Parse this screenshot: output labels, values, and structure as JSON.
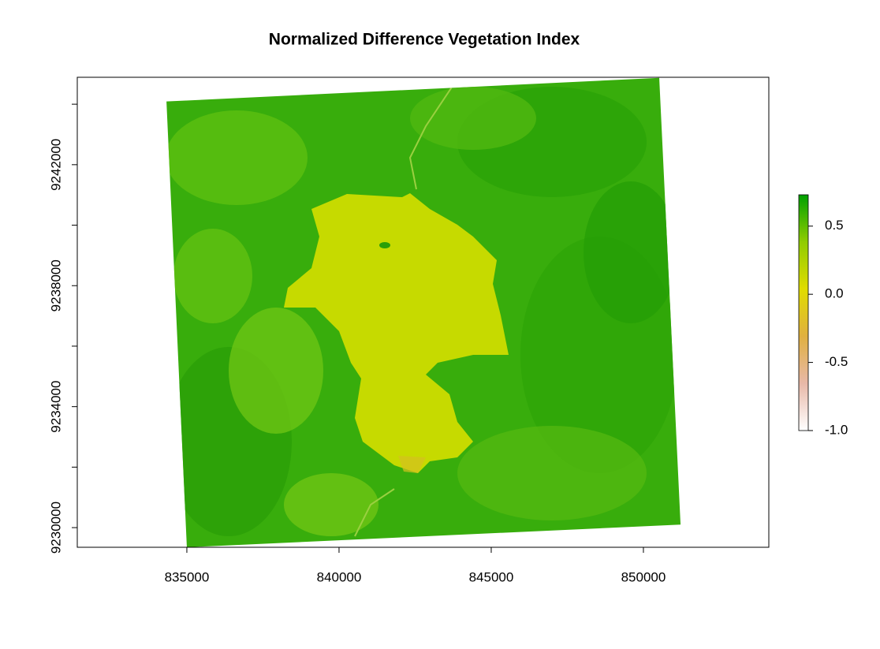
{
  "chart_data": {
    "type": "raster",
    "title": "Normalized Difference Vegetation Index",
    "xlim": [
      831400,
      854120
    ],
    "ylim": [
      9229350,
      9244890
    ],
    "xticks": [
      835000,
      840000,
      845000,
      850000
    ],
    "yticks": [
      9230000,
      9234000,
      9238000,
      9242000
    ],
    "yminor_ticks": [
      9232000,
      9236000,
      9240000,
      9244000
    ],
    "footprint": {
      "x": [
        834330,
        850520,
        851220,
        835000
      ],
      "y": [
        9244090,
        9244870,
        9230100,
        9229350
      ]
    },
    "colorbar": {
      "lim": [
        -1,
        0.73
      ],
      "ticks": [
        {
          "value": -1.0,
          "label": "-1.0"
        },
        -0.5,
        {
          "value": 0.0,
          "label": "0.0"
        },
        0.5
      ],
      "colors": [
        "#ffffff",
        "#e8b8a8",
        "#e0b040",
        "#e0dc00",
        "#90cc00",
        "#00a000"
      ]
    }
  }
}
